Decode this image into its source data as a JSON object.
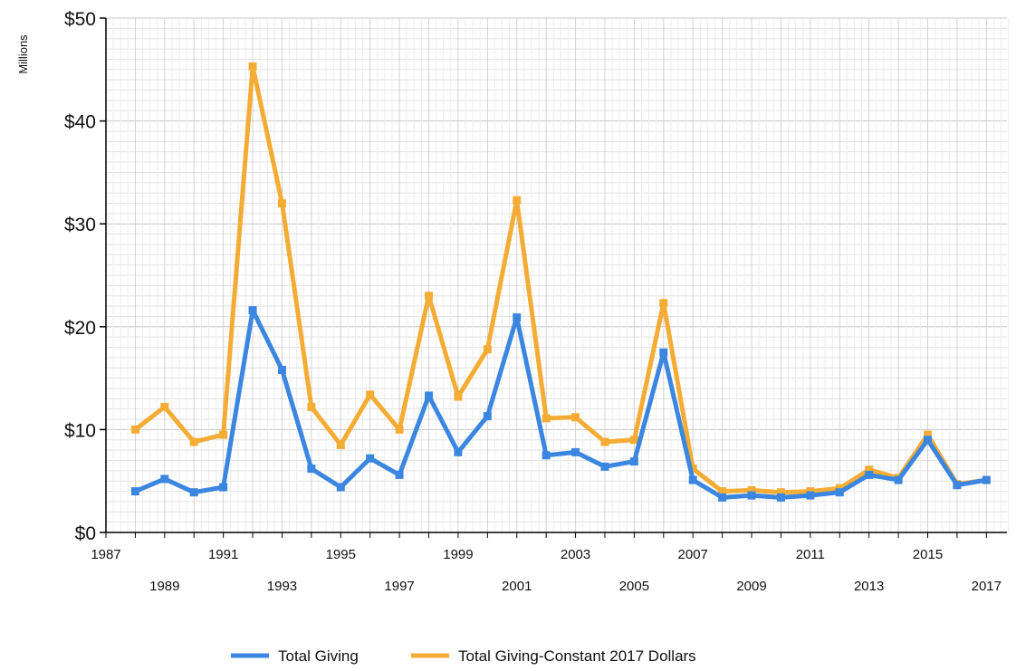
{
  "chart_data": {
    "type": "line",
    "ylabel": "Millions",
    "ylim": [
      0,
      50
    ],
    "xlim": [
      1987,
      2017.7
    ],
    "y_ticks": [
      0,
      10,
      20,
      30,
      40,
      50
    ],
    "y_tick_labels": [
      "$0",
      "$10",
      "$20",
      "$30",
      "$40",
      "$50"
    ],
    "x_ticks_row1": [
      1987,
      1991,
      1995,
      1999,
      2003,
      2007,
      2011,
      2015
    ],
    "x_ticks_row2": [
      1989,
      1993,
      1997,
      2001,
      2005,
      2009,
      2013,
      2017
    ],
    "grid": true,
    "legend_position": "bottom",
    "x": [
      1988,
      1989,
      1990,
      1991,
      1992,
      1993,
      1994,
      1995,
      1996,
      1997,
      1998,
      1999,
      2000,
      2001,
      2002,
      2003,
      2004,
      2005,
      2006,
      2007,
      2008,
      2009,
      2010,
      2011,
      2012,
      2013,
      2014,
      2015,
      2016,
      2017
    ],
    "series": [
      {
        "name": "Total Giving",
        "color": "#3b86e0",
        "values": [
          4.0,
          5.2,
          3.9,
          4.4,
          21.6,
          15.8,
          6.2,
          4.4,
          7.2,
          5.6,
          13.3,
          7.8,
          11.3,
          20.9,
          7.5,
          7.8,
          6.4,
          6.9,
          17.5,
          5.1,
          3.4,
          3.6,
          3.4,
          3.6,
          3.9,
          5.6,
          5.1,
          9.0,
          4.6,
          5.1
        ]
      },
      {
        "name": "Total Giving-Constant 2017 Dollars",
        "color": "#f5ac35",
        "values": [
          10.0,
          12.2,
          8.8,
          9.5,
          45.3,
          32.0,
          12.2,
          8.5,
          13.4,
          10.0,
          23.0,
          13.2,
          17.8,
          32.3,
          11.1,
          11.2,
          8.8,
          9.0,
          22.3,
          6.2,
          4.0,
          4.1,
          3.9,
          4.0,
          4.3,
          6.1,
          5.3,
          9.5,
          4.7,
          5.1
        ]
      }
    ]
  }
}
